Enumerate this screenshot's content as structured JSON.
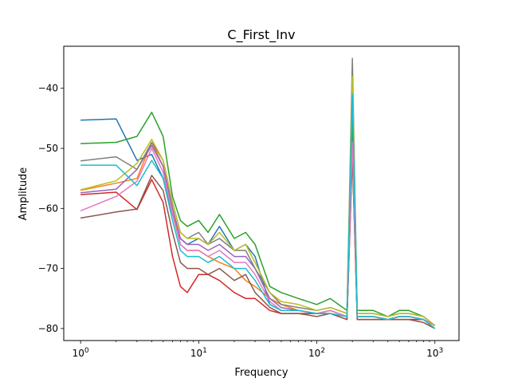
{
  "chart_data": {
    "type": "line",
    "title": "C_First_Inv",
    "xlabel": "Frequency",
    "ylabel": "Amplitude",
    "xscale": "log",
    "xlim": [
      0.72,
      1600
    ],
    "ylim": [
      -82,
      -33
    ],
    "grid": false,
    "legend": "none",
    "x_ticks": [
      {
        "value": 1,
        "base": "10",
        "exp": "0"
      },
      {
        "value": 10,
        "base": "10",
        "exp": "1"
      },
      {
        "value": 100,
        "base": "10",
        "exp": "2"
      },
      {
        "value": 1000,
        "base": "10",
        "exp": "3"
      }
    ],
    "y_ticks": [
      {
        "value": -40,
        "label": "−40"
      },
      {
        "value": -50,
        "label": "−50"
      },
      {
        "value": -60,
        "label": "−60"
      },
      {
        "value": -70,
        "label": "−70"
      },
      {
        "value": -80,
        "label": "−80"
      }
    ],
    "x": [
      1,
      2,
      3,
      4,
      5,
      6,
      7,
      8,
      10,
      12,
      15,
      20,
      25,
      30,
      40,
      50,
      70,
      100,
      130,
      180,
      200,
      220,
      300,
      400,
      500,
      600,
      800,
      1000
    ],
    "series": [
      {
        "color": "#1f77b4",
        "values": [
          -45.3,
          -45.1,
          -52,
          -51,
          -55,
          -61,
          -65,
          -66,
          -65,
          -66,
          -63,
          -67,
          -66,
          -68,
          -76,
          -77,
          -77,
          -77.5,
          -77,
          -78,
          -50,
          -78,
          -78,
          -78.5,
          -78,
          -78,
          -78.5,
          -79.5
        ]
      },
      {
        "color": "#ff7f0e",
        "values": [
          -57,
          -55.8,
          -55,
          -49,
          -53,
          -60,
          -66,
          -67,
          -67,
          -68,
          -69,
          -70,
          -72,
          -73,
          -75,
          -76,
          -77,
          -77.5,
          -77.5,
          -78,
          -49,
          -78,
          -78,
          -78.5,
          -78,
          -78,
          -78.5,
          -79.5
        ]
      },
      {
        "color": "#2ca02c",
        "values": [
          -49.2,
          -49,
          -48,
          -44,
          -48,
          -58,
          -62,
          -63,
          -62,
          -64,
          -61,
          -65,
          -64,
          -66,
          -73,
          -74,
          -75,
          -76,
          -75,
          -77,
          -45,
          -77,
          -77,
          -78,
          -77,
          -77,
          -78,
          -79.5
        ]
      },
      {
        "color": "#d62728",
        "values": [
          -57.7,
          -57.3,
          -60.2,
          -55.2,
          -59,
          -68,
          -73,
          -74,
          -71,
          -71,
          -72,
          -74,
          -75,
          -75,
          -77,
          -77.5,
          -77.5,
          -77.5,
          -77.5,
          -78.5,
          -51,
          -78.5,
          -78.5,
          -78.5,
          -78.5,
          -78.5,
          -78.5,
          -80
        ]
      },
      {
        "color": "#9467bd",
        "values": [
          -57.4,
          -56.8,
          -53.5,
          -49.5,
          -53,
          -60,
          -65,
          -66,
          -66,
          -67,
          -66,
          -68,
          -68,
          -70,
          -75,
          -76.5,
          -77,
          -77.5,
          -77,
          -78,
          -49,
          -78,
          -78,
          -78.5,
          -78,
          -78,
          -78.5,
          -79.5
        ]
      },
      {
        "color": "#8c564b",
        "values": [
          -61.6,
          -60.6,
          -60.1,
          -54.5,
          -57,
          -64,
          -69,
          -70,
          -70,
          -71,
          -70,
          -72,
          -71,
          -74,
          -76.5,
          -77.5,
          -77.5,
          -78,
          -77.5,
          -78.5,
          -51,
          -78.5,
          -78.5,
          -78.5,
          -78.5,
          -78.5,
          -79,
          -80
        ]
      },
      {
        "color": "#e377c2",
        "values": [
          -60.4,
          -58,
          -55.5,
          -50,
          -54,
          -61,
          -66,
          -67,
          -67,
          -68,
          -67,
          -69,
          -69,
          -71,
          -75.5,
          -77,
          -77,
          -77.5,
          -77,
          -78,
          -49,
          -78,
          -78,
          -78.5,
          -78,
          -78,
          -78.5,
          -79.5
        ]
      },
      {
        "color": "#7f7f7f",
        "values": [
          -52.1,
          -51.4,
          -53.5,
          -49,
          -52,
          -59,
          -64,
          -65,
          -64,
          -66,
          -65,
          -67,
          -67,
          -70,
          -74,
          -76,
          -76.5,
          -77,
          -76.5,
          -77.5,
          -35,
          -77.5,
          -77.5,
          -78,
          -77.5,
          -77.5,
          -78,
          -79.5
        ]
      },
      {
        "color": "#bcbd22",
        "values": [
          -56.9,
          -55.4,
          -52.5,
          -48.5,
          -52,
          -59,
          -64,
          -65,
          -65,
          -66,
          -64,
          -67,
          -66,
          -69,
          -74,
          -75.5,
          -76,
          -77,
          -76.5,
          -77.5,
          -38,
          -77.5,
          -77.5,
          -78,
          -77.5,
          -77.5,
          -78,
          -79.5
        ]
      },
      {
        "color": "#17becf",
        "values": [
          -52.8,
          -52.8,
          -56.2,
          -52,
          -55,
          -62,
          -67,
          -68,
          -68,
          -69,
          -68,
          -70,
          -70,
          -72,
          -76,
          -77,
          -77,
          -77.5,
          -77.5,
          -78,
          -41,
          -78,
          -78,
          -78.5,
          -78,
          -78,
          -78.5,
          -80
        ]
      }
    ]
  }
}
